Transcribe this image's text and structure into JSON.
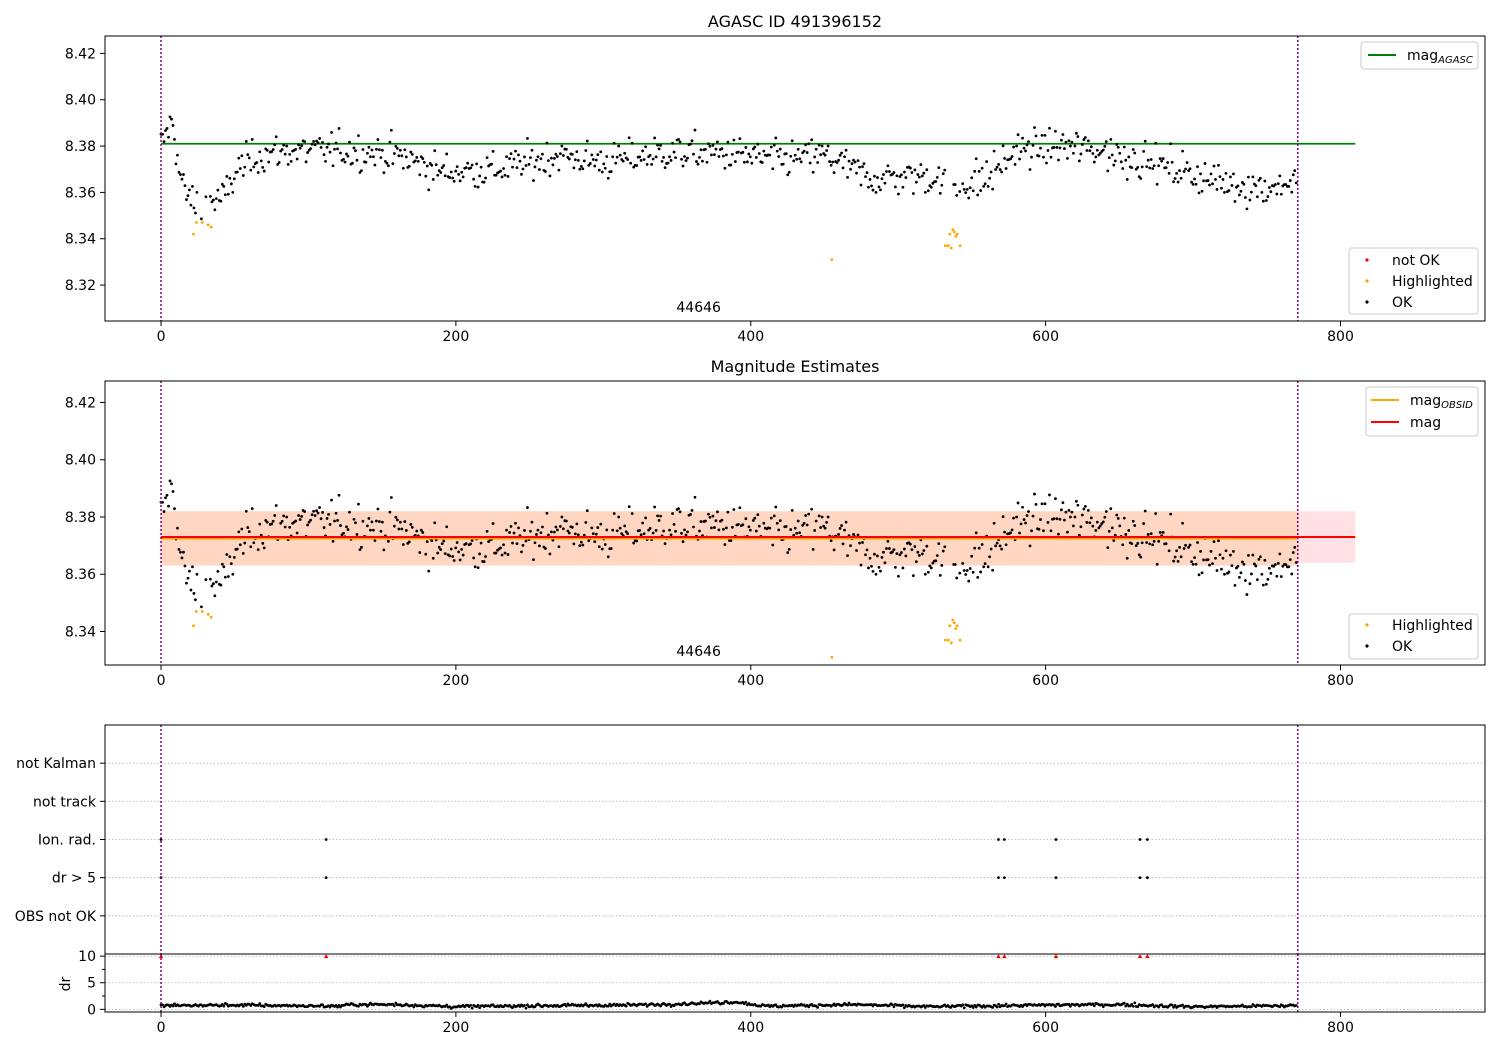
{
  "figure": {
    "top_title": "AGASC ID 491396152",
    "mid_title": "Magnitude Estimates",
    "obsid_label": "44646"
  },
  "colors": {
    "ok": "#000000",
    "highlighted": "#ffa500",
    "not_ok": "#ff0000",
    "agasc_line": "#008000",
    "obsid_line": "#ffa500",
    "mag_line": "#ff0000",
    "obs_boundary": "#800080",
    "band_obsid": "#ffd5c0",
    "band_mag": "#ffdfe4"
  },
  "chart_data": [
    {
      "type": "scatter",
      "title": "AGASC ID 491396152",
      "xlabel": "",
      "ylabel": "",
      "xlim": [
        -38,
        898
      ],
      "ylim": [
        8.3045,
        8.4275
      ],
      "xticks": [
        0,
        200,
        400,
        600,
        800
      ],
      "yticks": [
        8.32,
        8.34,
        8.36,
        8.38,
        8.4,
        8.42
      ],
      "ytick_labels": [
        "8.32",
        "8.34",
        "8.36",
        "8.38",
        "8.40",
        "8.42"
      ],
      "grid": false,
      "observation_boundaries_x": [
        0,
        771
      ],
      "observation_label": {
        "text": "44646",
        "x": 385
      },
      "reference_lines": [
        {
          "name": "mag_AGASC",
          "y": 8.381,
          "x": [
            0,
            810
          ],
          "color": "#008000"
        }
      ],
      "series": [
        {
          "name": "not OK",
          "points": []
        },
        {
          "name": "Highlighted",
          "points": [
            [
              22,
              8.342
            ],
            [
              24,
              8.347
            ],
            [
              28,
              8.347
            ],
            [
              32,
              8.346
            ],
            [
              34,
              8.345
            ],
            [
              455,
              8.331
            ],
            [
              532,
              8.337
            ],
            [
              534,
              8.337
            ],
            [
              535,
              8.342
            ],
            [
              536,
              8.336
            ],
            [
              537,
              8.344
            ],
            [
              538,
              8.343
            ],
            [
              539,
              8.341
            ],
            [
              540,
              8.342
            ],
            [
              542,
              8.337
            ]
          ]
        },
        {
          "name": "OK",
          "trend": [
            [
              0,
              8.38
            ],
            [
              4,
              8.386
            ],
            [
              8,
              8.391
            ],
            [
              12,
              8.37
            ],
            [
              16,
              8.36
            ],
            [
              20,
              8.357
            ],
            [
              30,
              8.356
            ],
            [
              42,
              8.357
            ],
            [
              52,
              8.37
            ],
            [
              65,
              8.376
            ],
            [
              90,
              8.378
            ],
            [
              130,
              8.378
            ],
            [
              160,
              8.376
            ],
            [
              190,
              8.369
            ],
            [
              230,
              8.37
            ],
            [
              270,
              8.376
            ],
            [
              300,
              8.373
            ],
            [
              340,
              8.377
            ],
            [
              380,
              8.377
            ],
            [
              420,
              8.374
            ],
            [
              450,
              8.376
            ],
            [
              480,
              8.366
            ],
            [
              520,
              8.367
            ],
            [
              540,
              8.363
            ],
            [
              560,
              8.366
            ],
            [
              580,
              8.378
            ],
            [
              610,
              8.38
            ],
            [
              640,
              8.378
            ],
            [
              670,
              8.373
            ],
            [
              700,
              8.368
            ],
            [
              720,
              8.364
            ],
            [
              750,
              8.362
            ],
            [
              771,
              8.365
            ]
          ],
          "dip_x": [
            [
              22,
              34
            ],
            [
              530,
              543
            ]
          ],
          "scatter_sd": 0.0065,
          "count": 760
        }
      ],
      "legend": [
        {
          "label": "mag",
          "subscript": "AGASC",
          "kind": "line",
          "color": "#008000",
          "placement": "top-right"
        },
        {
          "label": "not OK",
          "kind": "marker",
          "color": "#ff0000",
          "placement": "bottom-right"
        },
        {
          "label": "Highlighted",
          "kind": "marker",
          "color": "#ffa500",
          "placement": "bottom-right"
        },
        {
          "label": "OK",
          "kind": "marker",
          "color": "#000000",
          "placement": "bottom-right"
        }
      ]
    },
    {
      "type": "scatter",
      "title": "Magnitude Estimates",
      "xlabel": "",
      "ylabel": "",
      "xlim": [
        -38,
        898
      ],
      "ylim": [
        8.3283,
        8.4275
      ],
      "xticks": [
        0,
        200,
        400,
        600,
        800
      ],
      "yticks": [
        8.34,
        8.36,
        8.38,
        8.4,
        8.42
      ],
      "ytick_labels": [
        "8.34",
        "8.36",
        "8.38",
        "8.40",
        "8.42"
      ],
      "grid": false,
      "observation_boundaries_x": [
        0,
        771
      ],
      "observation_label": {
        "text": "44646",
        "x": 385
      },
      "bands": [
        {
          "name": "mag band",
          "y": [
            8.364,
            8.382
          ],
          "x": [
            0,
            810
          ],
          "color": "#ffdfe4"
        },
        {
          "name": "mag_OBSID band",
          "y": [
            8.363,
            8.382
          ],
          "x": [
            0,
            771
          ],
          "color": "#ffd5c0"
        }
      ],
      "reference_lines": [
        {
          "name": "mag_OBSID",
          "y": 8.3725,
          "x": [
            0,
            771
          ],
          "color": "#ffa500"
        },
        {
          "name": "mag",
          "y": 8.373,
          "x": [
            0,
            810
          ],
          "color": "#ff0000"
        }
      ],
      "series": [
        {
          "name": "Highlighted",
          "same_as_panel": 0
        },
        {
          "name": "OK",
          "same_as_panel": 0
        }
      ],
      "legend": [
        {
          "label": "mag",
          "subscript": "OBSID",
          "kind": "line",
          "color": "#ffa500",
          "placement": "top-right"
        },
        {
          "label": "mag",
          "kind": "line",
          "color": "#ff0000",
          "placement": "top-right"
        },
        {
          "label": "Highlighted",
          "kind": "marker",
          "color": "#ffa500",
          "placement": "bottom-right"
        },
        {
          "label": "OK",
          "kind": "marker",
          "color": "#000000",
          "placement": "bottom-right"
        }
      ]
    },
    {
      "type": "scatter",
      "title": "",
      "xlabel": "",
      "ylabel": "",
      "xlim": [
        -38,
        898
      ],
      "categories": [
        "OBS not OK",
        "dr > 5",
        "Ion. rad.",
        "not track",
        "not Kalman"
      ],
      "grid": true,
      "observation_boundaries_x": [
        0,
        771
      ],
      "series": [
        {
          "name": "not Kalman",
          "x": []
        },
        {
          "name": "not track",
          "x": []
        },
        {
          "name": "Ion. rad.",
          "x": [
            0,
            112,
            568,
            572,
            607,
            664,
            669
          ]
        },
        {
          "name": "dr > 5",
          "x": [
            0,
            112,
            568,
            572,
            607,
            664,
            669
          ]
        },
        {
          "name": "OBS not OK",
          "x": []
        }
      ]
    },
    {
      "type": "scatter",
      "title": "",
      "xlabel": "",
      "ylabel": "dr",
      "xlim": [
        -38,
        898
      ],
      "ylim": [
        -0.5,
        10.4
      ],
      "xticks": [
        0,
        200,
        400,
        600,
        800
      ],
      "yticks": [
        0,
        5,
        10
      ],
      "ytick_labels": [
        "0",
        "5",
        "10"
      ],
      "grid": true,
      "observation_boundaries_x": [
        0,
        771
      ],
      "series": [
        {
          "name": "dr",
          "trend": [
            [
              0,
              0.7
            ],
            [
              50,
              0.8
            ],
            [
              120,
              0.6
            ],
            [
              130,
              0.9
            ],
            [
              160,
              0.9
            ],
            [
              200,
              0.5
            ],
            [
              260,
              0.7
            ],
            [
              320,
              0.8
            ],
            [
              360,
              1.1
            ],
            [
              390,
              1.4
            ],
            [
              410,
              0.6
            ],
            [
              470,
              0.9
            ],
            [
              520,
              0.5
            ],
            [
              600,
              0.8
            ],
            [
              650,
              0.9
            ],
            [
              700,
              0.5
            ],
            [
              771,
              0.7
            ]
          ],
          "count": 760
        },
        {
          "name": "dr > 10 (clipped)",
          "x": [
            0,
            112,
            568,
            572,
            607,
            664,
            669
          ],
          "y": 10,
          "color": "#ff0000"
        }
      ]
    }
  ]
}
